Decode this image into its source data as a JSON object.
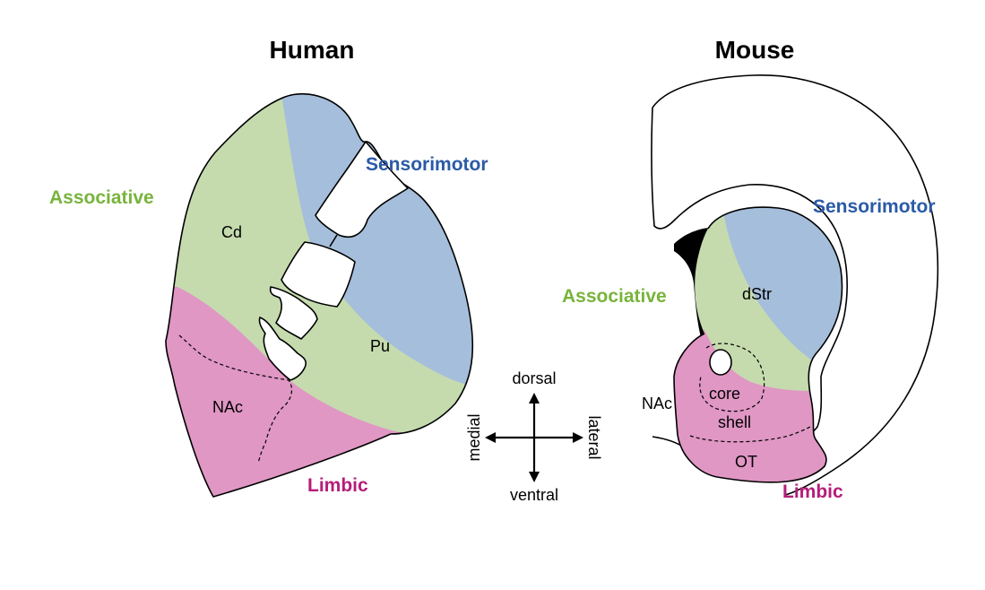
{
  "colors": {
    "sensorimotor": "#a5bedb",
    "associative": "#c5dbae",
    "limbic": "#e097c4",
    "sensorimotor_text": "#2a5aa6",
    "associative_text": "#78b43c",
    "limbic_text": "#b51d79"
  },
  "human": {
    "title": "Human",
    "labels": {
      "sensorimotor": "Sensorimotor",
      "associative": "Associative",
      "limbic": "Limbic"
    },
    "structures": {
      "cd": "Cd",
      "pu": "Pu",
      "nac": "NAc"
    }
  },
  "mouse": {
    "title": "Mouse",
    "labels": {
      "sensorimotor": "Sensorimotor",
      "associative": "Associative",
      "limbic": "Limbic"
    },
    "structures": {
      "dstr": "dStr",
      "nac": "NAc",
      "core": "core",
      "shell": "shell",
      "ot": "OT"
    }
  },
  "compass": {
    "dorsal": "dorsal",
    "ventral": "ventral",
    "medial": "medial",
    "lateral": "lateral"
  }
}
